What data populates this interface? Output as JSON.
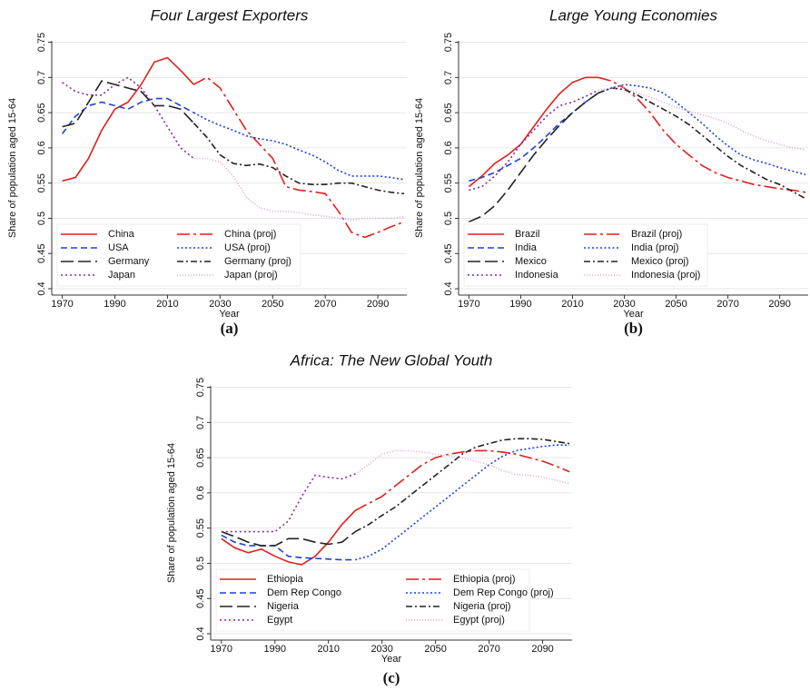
{
  "chart_data": [
    {
      "type": "line",
      "title": "Four Largest Exporters",
      "xlabel": "Year",
      "ylabel": "Share of population aged 15-64",
      "panel_label": "(a)",
      "x": [
        1970,
        1975,
        1980,
        1985,
        1990,
        1995,
        2000,
        2005,
        2010,
        2015,
        2020,
        2025,
        2030,
        2035,
        2040,
        2045,
        2050,
        2055,
        2060,
        2065,
        2070,
        2075,
        2080,
        2085,
        2090,
        2095,
        2100
      ],
      "xlim": [
        1966,
        2101
      ],
      "xticks": [
        1970,
        1990,
        2010,
        2030,
        2050,
        2070,
        2090
      ],
      "ylim": [
        0.391,
        0.752
      ],
      "yticks": [
        0.4,
        0.45,
        0.5,
        0.55,
        0.6,
        0.65,
        0.7,
        0.75
      ],
      "grid": true,
      "legend": "lower left",
      "series": [
        {
          "name": "China",
          "color": "#e0201b",
          "style": "solid",
          "values": [
            0.553,
            0.558,
            0.585,
            0.625,
            0.655,
            0.665,
            0.69,
            0.722,
            0.728,
            0.71,
            0.69,
            null,
            null,
            null,
            null,
            null,
            null,
            null,
            null,
            null,
            null,
            null,
            null,
            null,
            null,
            null,
            null
          ]
        },
        {
          "name": "China (proj)",
          "color": "#e0201b",
          "style": "longdash-dot",
          "values": [
            null,
            null,
            null,
            null,
            null,
            null,
            null,
            null,
            null,
            null,
            0.69,
            0.7,
            0.685,
            0.655,
            0.625,
            0.605,
            0.585,
            0.545,
            0.54,
            0.538,
            0.535,
            0.51,
            0.48,
            0.473,
            0.48,
            0.488,
            0.495
          ]
        },
        {
          "name": "USA",
          "color": "#1f3fe0",
          "style": "dash",
          "values": [
            0.62,
            0.645,
            0.66,
            0.665,
            0.66,
            0.655,
            0.665,
            0.67,
            0.67,
            0.66,
            0.65,
            null,
            null,
            null,
            null,
            null,
            null,
            null,
            null,
            null,
            null,
            null,
            null,
            null,
            null,
            null,
            null
          ]
        },
        {
          "name": "USA (proj)",
          "color": "#1f3fe0",
          "style": "shortdot",
          "values": [
            null,
            null,
            null,
            null,
            null,
            null,
            null,
            null,
            null,
            null,
            0.65,
            0.64,
            0.632,
            0.625,
            0.617,
            0.613,
            0.61,
            0.605,
            0.597,
            0.59,
            0.58,
            0.568,
            0.56,
            0.56,
            0.56,
            0.558,
            0.555
          ]
        },
        {
          "name": "Germany",
          "color": "#222222",
          "style": "longdash",
          "values": [
            0.63,
            0.635,
            0.665,
            0.695,
            0.69,
            0.685,
            0.68,
            0.66,
            0.66,
            0.655,
            0.635,
            null,
            null,
            null,
            null,
            null,
            null,
            null,
            null,
            null,
            null,
            null,
            null,
            null,
            null,
            null,
            null
          ]
        },
        {
          "name": "Germany (proj)",
          "color": "#222222",
          "style": "dash-dot",
          "values": [
            null,
            null,
            null,
            null,
            null,
            null,
            null,
            null,
            null,
            null,
            0.635,
            0.615,
            0.59,
            0.578,
            0.575,
            0.577,
            0.572,
            0.56,
            0.55,
            0.548,
            0.548,
            0.55,
            0.55,
            0.545,
            0.54,
            0.537,
            0.535
          ]
        },
        {
          "name": "Japan",
          "color": "#8b2a9b",
          "style": "dot",
          "values": [
            0.693,
            0.68,
            0.675,
            0.675,
            0.69,
            0.7,
            0.685,
            0.66,
            0.63,
            0.6,
            0.585,
            null,
            null,
            null,
            null,
            null,
            null,
            null,
            null,
            null,
            null,
            null,
            null,
            null,
            null,
            null,
            null
          ]
        },
        {
          "name": "Japan (proj)",
          "color": "#d9a6d6",
          "style": "finedot",
          "values": [
            null,
            null,
            null,
            null,
            null,
            null,
            null,
            null,
            null,
            null,
            0.585,
            0.585,
            0.58,
            0.56,
            0.53,
            0.515,
            0.51,
            0.51,
            0.508,
            0.505,
            0.503,
            0.5,
            0.498,
            0.5,
            0.5,
            0.5,
            0.502
          ]
        }
      ]
    },
    {
      "type": "line",
      "title": "Large Young Economies",
      "xlabel": "Year",
      "ylabel": "Share of population aged 15-64",
      "panel_label": "(b)",
      "x": [
        1970,
        1975,
        1980,
        1985,
        1990,
        1995,
        2000,
        2005,
        2010,
        2015,
        2020,
        2025,
        2030,
        2035,
        2040,
        2045,
        2050,
        2055,
        2060,
        2065,
        2070,
        2075,
        2080,
        2085,
        2090,
        2095,
        2100
      ],
      "xlim": [
        1966,
        2101
      ],
      "xticks": [
        1970,
        1990,
        2010,
        2030,
        2050,
        2070,
        2090
      ],
      "ylim": [
        0.391,
        0.752
      ],
      "yticks": [
        0.4,
        0.45,
        0.5,
        0.55,
        0.6,
        0.65,
        0.7,
        0.75
      ],
      "grid": true,
      "legend": "lower left",
      "series": [
        {
          "name": "Brazil",
          "color": "#e0201b",
          "style": "solid",
          "values": [
            0.545,
            0.56,
            0.578,
            0.59,
            0.605,
            0.63,
            0.655,
            0.677,
            0.693,
            0.7,
            0.7,
            null,
            null,
            null,
            null,
            null,
            null,
            null,
            null,
            null,
            null,
            null,
            null,
            null,
            null,
            null,
            null
          ]
        },
        {
          "name": "Brazil (proj)",
          "color": "#e0201b",
          "style": "longdash-dot",
          "values": [
            null,
            null,
            null,
            null,
            null,
            null,
            null,
            null,
            null,
            null,
            0.7,
            0.695,
            0.685,
            0.67,
            0.65,
            0.625,
            0.605,
            0.59,
            0.575,
            0.565,
            0.558,
            0.553,
            0.548,
            0.545,
            0.542,
            0.54,
            0.537
          ]
        },
        {
          "name": "India",
          "color": "#1f3fe0",
          "style": "dash",
          "values": [
            0.553,
            0.558,
            0.565,
            0.575,
            0.585,
            0.6,
            0.617,
            0.635,
            0.65,
            0.665,
            0.678,
            null,
            null,
            null,
            null,
            null,
            null,
            null,
            null,
            null,
            null,
            null,
            null,
            null,
            null,
            null,
            null
          ]
        },
        {
          "name": "India (proj)",
          "color": "#1f3fe0",
          "style": "shortdot",
          "values": [
            null,
            null,
            null,
            null,
            null,
            null,
            null,
            null,
            null,
            null,
            0.678,
            0.685,
            0.69,
            0.688,
            0.685,
            0.678,
            0.665,
            0.65,
            0.635,
            0.618,
            0.603,
            0.59,
            0.583,
            0.578,
            0.572,
            0.567,
            0.562
          ]
        },
        {
          "name": "Mexico",
          "color": "#222222",
          "style": "longdash",
          "values": [
            0.495,
            0.503,
            0.518,
            0.54,
            0.565,
            0.59,
            0.612,
            0.632,
            0.65,
            0.665,
            0.678,
            null,
            null,
            null,
            null,
            null,
            null,
            null,
            null,
            null,
            null,
            null,
            null,
            null,
            null,
            null,
            null
          ]
        },
        {
          "name": "Mexico (proj)",
          "color": "#222222",
          "style": "dash-dot",
          "values": [
            null,
            null,
            null,
            null,
            null,
            null,
            null,
            null,
            null,
            null,
            0.678,
            0.685,
            0.683,
            0.675,
            0.665,
            0.655,
            0.645,
            0.633,
            0.618,
            0.603,
            0.588,
            0.575,
            0.565,
            0.555,
            0.548,
            0.538,
            0.528
          ]
        },
        {
          "name": "Indonesia",
          "color": "#8b2a9b",
          "style": "dot",
          "values": [
            0.54,
            0.545,
            0.56,
            0.58,
            0.605,
            0.625,
            0.645,
            0.66,
            0.665,
            0.673,
            0.682,
            null,
            null,
            null,
            null,
            null,
            null,
            null,
            null,
            null,
            null,
            null,
            null,
            null,
            null,
            null,
            null
          ]
        },
        {
          "name": "Indonesia (proj)",
          "color": "#d9a6d6",
          "style": "finedot",
          "values": [
            null,
            null,
            null,
            null,
            null,
            null,
            null,
            null,
            null,
            null,
            0.682,
            0.685,
            0.685,
            0.678,
            0.672,
            0.665,
            0.658,
            0.652,
            0.647,
            0.642,
            0.635,
            0.625,
            0.617,
            0.61,
            0.605,
            0.6,
            0.597
          ]
        }
      ]
    },
    {
      "type": "line",
      "title": "Africa: The New Global Youth",
      "xlabel": "Year",
      "ylabel": "Share of population aged 15-64",
      "panel_label": "(c)",
      "x": [
        1970,
        1975,
        1980,
        1985,
        1990,
        1995,
        2000,
        2005,
        2010,
        2015,
        2020,
        2025,
        2030,
        2035,
        2040,
        2045,
        2050,
        2055,
        2060,
        2065,
        2070,
        2075,
        2080,
        2085,
        2090,
        2095,
        2100
      ],
      "xlim": [
        1966,
        2101
      ],
      "xticks": [
        1970,
        1990,
        2010,
        2030,
        2050,
        2070,
        2090
      ],
      "ylim": [
        0.391,
        0.752
      ],
      "yticks": [
        0.4,
        0.45,
        0.5,
        0.55,
        0.6,
        0.65,
        0.7,
        0.75
      ],
      "grid": true,
      "legend": "lower left",
      "series": [
        {
          "name": "Ethiopia",
          "color": "#e0201b",
          "style": "solid",
          "values": [
            0.535,
            0.522,
            0.515,
            0.52,
            0.51,
            0.502,
            0.498,
            0.51,
            0.53,
            0.555,
            0.575,
            null,
            null,
            null,
            null,
            null,
            null,
            null,
            null,
            null,
            null,
            null,
            null,
            null,
            null,
            null,
            null
          ]
        },
        {
          "name": "Ethiopia (proj)",
          "color": "#e0201b",
          "style": "longdash-dot",
          "values": [
            null,
            null,
            null,
            null,
            null,
            null,
            null,
            null,
            null,
            null,
            0.575,
            0.585,
            0.595,
            0.61,
            0.625,
            0.64,
            0.65,
            0.655,
            0.658,
            0.66,
            0.66,
            0.658,
            0.655,
            0.65,
            0.645,
            0.638,
            0.63
          ]
        },
        {
          "name": "Dem Rep Congo",
          "color": "#1f3fe0",
          "style": "dash",
          "values": [
            0.54,
            0.53,
            0.525,
            0.525,
            0.525,
            0.51,
            0.508,
            0.507,
            0.506,
            0.505,
            0.505,
            null,
            null,
            null,
            null,
            null,
            null,
            null,
            null,
            null,
            null,
            null,
            null,
            null,
            null,
            null,
            null
          ]
        },
        {
          "name": "Dem Rep Congo (proj)",
          "color": "#1f3fe0",
          "style": "shortdot",
          "values": [
            null,
            null,
            null,
            null,
            null,
            null,
            null,
            null,
            null,
            null,
            0.505,
            0.51,
            0.52,
            0.535,
            0.55,
            0.565,
            0.58,
            0.595,
            0.61,
            0.625,
            0.64,
            0.652,
            0.66,
            0.663,
            0.666,
            0.668,
            0.668
          ]
        },
        {
          "name": "Nigeria",
          "color": "#222222",
          "style": "longdash",
          "values": [
            0.545,
            0.538,
            0.53,
            0.525,
            0.525,
            0.535,
            0.535,
            0.53,
            0.527,
            0.53,
            0.545,
            null,
            null,
            null,
            null,
            null,
            null,
            null,
            null,
            null,
            null,
            null,
            null,
            null,
            null,
            null,
            null
          ]
        },
        {
          "name": "Nigeria (proj)",
          "color": "#222222",
          "style": "dash-dot",
          "values": [
            null,
            null,
            null,
            null,
            null,
            null,
            null,
            null,
            null,
            null,
            0.545,
            0.555,
            0.568,
            0.58,
            0.595,
            0.61,
            0.625,
            0.64,
            0.655,
            0.665,
            0.67,
            0.675,
            0.677,
            0.677,
            0.676,
            0.673,
            0.67
          ]
        },
        {
          "name": "Egypt",
          "color": "#8b2a9b",
          "style": "dot",
          "values": [
            0.545,
            0.545,
            0.545,
            0.545,
            0.545,
            0.56,
            0.595,
            0.625,
            0.622,
            0.62,
            0.627,
            null,
            null,
            null,
            null,
            null,
            null,
            null,
            null,
            null,
            null,
            null,
            null,
            null,
            null,
            null,
            null
          ]
        },
        {
          "name": "Egypt (proj)",
          "color": "#d9a6d6",
          "style": "finedot",
          "values": [
            null,
            null,
            null,
            null,
            null,
            null,
            null,
            null,
            null,
            null,
            0.627,
            0.64,
            0.655,
            0.66,
            0.66,
            0.658,
            0.655,
            0.653,
            0.65,
            0.645,
            0.64,
            0.632,
            0.626,
            0.625,
            0.622,
            0.618,
            0.613
          ]
        }
      ]
    }
  ]
}
